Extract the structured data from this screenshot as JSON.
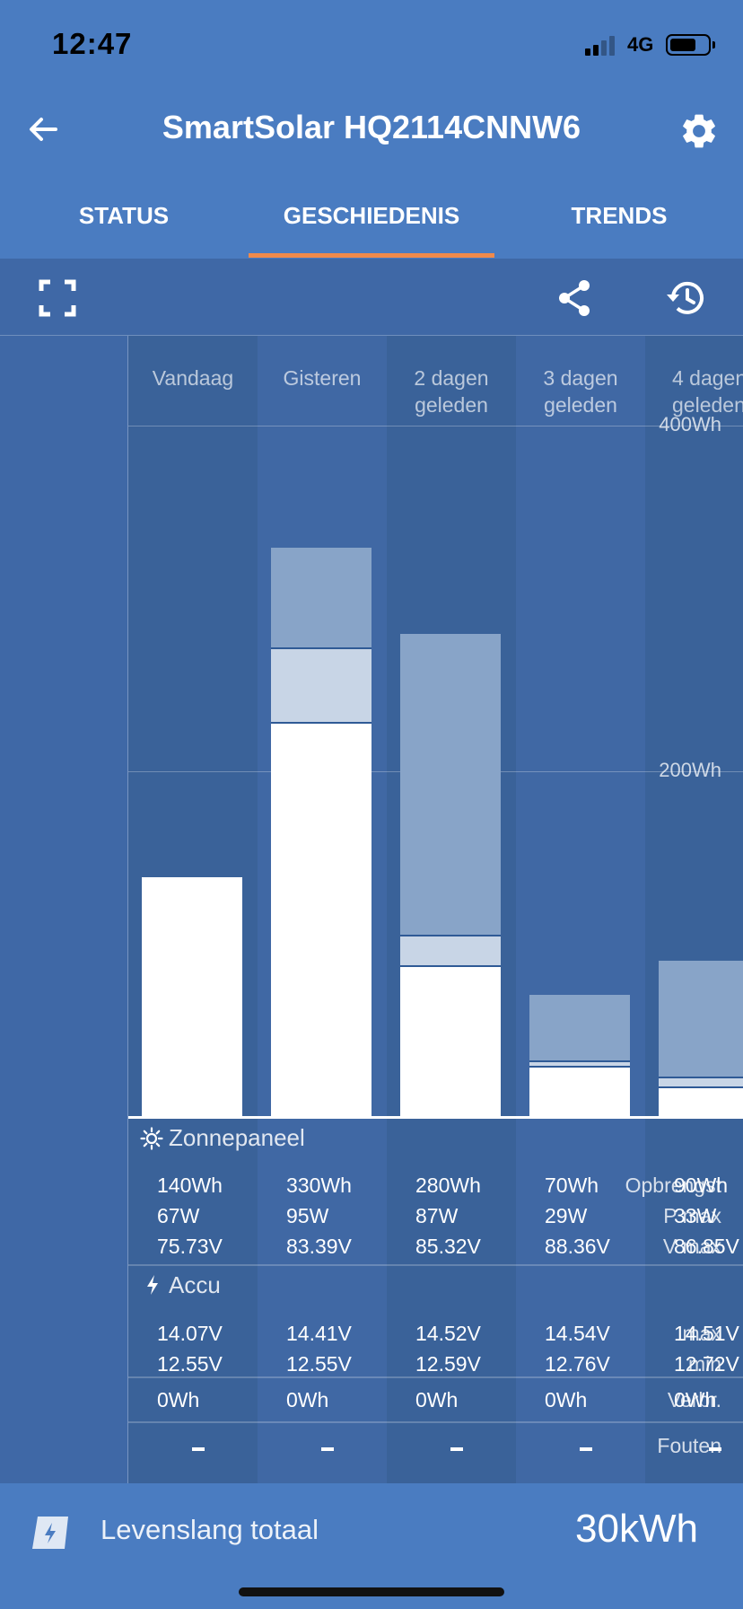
{
  "status_bar": {
    "time": "12:47",
    "network": "4G"
  },
  "header": {
    "title": "SmartSolar HQ2114CNNW6"
  },
  "tabs": [
    {
      "label": "STATUS"
    },
    {
      "label": "GESCHIEDENIS"
    },
    {
      "label": "TRENDS"
    }
  ],
  "chart": {
    "y_ticks": [
      "400Wh",
      "200Wh"
    ],
    "columns": [
      {
        "head1": "Vandaag",
        "head2": ""
      },
      {
        "head1": "Gisteren",
        "head2": ""
      },
      {
        "head1": "2 dagen",
        "head2": "geleden"
      },
      {
        "head1": "3 dagen",
        "head2": "geleden"
      },
      {
        "head1": "4 dagen",
        "head2": "geleden"
      }
    ]
  },
  "chart_data": {
    "type": "bar",
    "categories": [
      "Vandaag",
      "Gisteren",
      "2 dagen geleden",
      "3 dagen geleden",
      "4 dagen geleden"
    ],
    "ylim": [
      0,
      400
    ],
    "y_ticks": [
      "400Wh",
      "200Wh"
    ],
    "stacks": [
      {
        "white": 138,
        "light": 0,
        "mid": 0
      },
      {
        "white": 227,
        "light": 43,
        "mid": 59
      },
      {
        "white": 86,
        "light": 18,
        "mid": 175
      },
      {
        "white": 28,
        "light": 3,
        "mid": 39
      },
      {
        "white": 16,
        "light": 6,
        "mid": 68
      }
    ]
  },
  "solar": {
    "section_label": "Zonnepaneel",
    "row_labels": [
      "Opbrengst",
      "P max",
      "V max"
    ],
    "values": [
      [
        "140Wh",
        "67W",
        "75.73V"
      ],
      [
        "330Wh",
        "95W",
        "83.39V"
      ],
      [
        "280Wh",
        "87W",
        "85.32V"
      ],
      [
        "70Wh",
        "29W",
        "88.36V"
      ],
      [
        "90Wh",
        "33W",
        "86.85V"
      ]
    ]
  },
  "battery": {
    "section_label": "Accu",
    "row_labels": [
      "max",
      "min"
    ],
    "values": [
      [
        "14.07V",
        "12.55V"
      ],
      [
        "14.41V",
        "12.55V"
      ],
      [
        "14.52V",
        "12.59V"
      ],
      [
        "14.54V",
        "12.76V"
      ],
      [
        "14.51V",
        "12.72V"
      ]
    ]
  },
  "consumption": {
    "row_label": "Verbr.",
    "values": [
      "0Wh",
      "0Wh",
      "0Wh",
      "0Wh",
      "0Wh"
    ]
  },
  "errors": {
    "row_label": "Fouten"
  },
  "footer": {
    "label": "Levenslang totaal",
    "value": "30kWh"
  },
  "colors": {
    "header": "#4a7cc1",
    "accent": "#f08a4b",
    "bar_white": "#ffffff",
    "bar_light": "#c8d5e6",
    "bar_mid": "#88a4c8"
  }
}
